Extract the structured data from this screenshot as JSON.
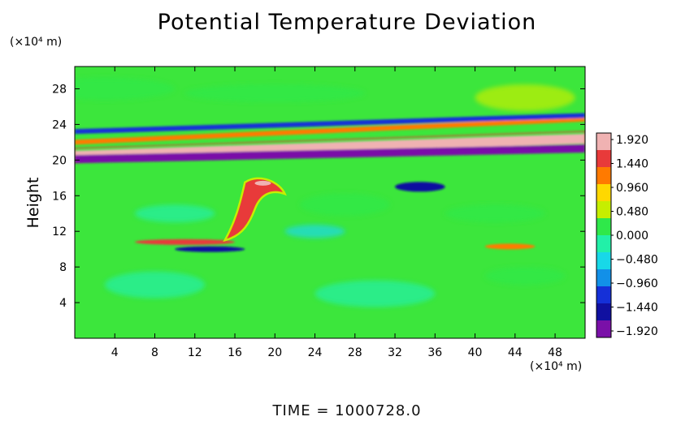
{
  "chart_data": {
    "type": "heatmap",
    "title": "Potential Temperature Deviation",
    "ylabel": "Height",
    "x_unit": "(×10⁴ m)",
    "y_unit": "(×10⁴ m)",
    "x_ticks": [
      4,
      8,
      12,
      16,
      20,
      24,
      28,
      32,
      36,
      40,
      44,
      48
    ],
    "y_ticks": [
      4,
      8,
      12,
      16,
      20,
      24,
      28
    ],
    "xlim": [
      0,
      51
    ],
    "ylim": [
      0,
      30.5
    ],
    "colorbar": {
      "labels": [
        "1.920",
        "1.440",
        "0.960",
        "0.480",
        "0.000",
        "−0.480",
        "−0.960",
        "−1.440",
        "−1.920"
      ],
      "colors": [
        "#f0b2b2",
        "#e83a3a",
        "#ff7a00",
        "#ffd800",
        "#c6ee00",
        "#2fe84a",
        "#22f0a8",
        "#18d8e8",
        "#1290e8",
        "#1530d8",
        "#1010a0",
        "#7a10a8"
      ]
    },
    "background_color": "#3ce63c",
    "features": [
      {
        "name": "upper-positive-band",
        "x": [
          0,
          51
        ],
        "y_left": 20.5,
        "y_right": 22.4,
        "value": 1.92
      },
      {
        "name": "upper-negative-band",
        "x": [
          0,
          51
        ],
        "y_left": 20.1,
        "y_right": 21.3,
        "value": -1.92
      },
      {
        "name": "stratosphere-wave-positive",
        "x": [
          0,
          51
        ],
        "y_left": 22.0,
        "y_right": 24.6,
        "value": 1.2
      },
      {
        "name": "stratosphere-wave-negative",
        "x": [
          0,
          51
        ],
        "y_left": 23.2,
        "y_right": 25.0,
        "value": -1.3
      },
      {
        "name": "tropopause-warm-streak",
        "x": [
          6,
          16
        ],
        "y": 10.8,
        "value": 1.5
      },
      {
        "name": "tropopause-cold-streak",
        "x": [
          10,
          17
        ],
        "y": 10.0,
        "value": -1.6
      },
      {
        "name": "convective-plume",
        "x": [
          14,
          21
        ],
        "y": [
          10,
          18.5
        ],
        "value": 1.6
      },
      {
        "name": "cold-anomaly-36",
        "x": [
          32,
          37
        ],
        "y": 17.0,
        "value": -1.6
      },
      {
        "name": "warm-streak-44",
        "x": [
          41,
          46
        ],
        "y": 10.3,
        "value": 1.3
      }
    ]
  },
  "time_label": "TIME = 1000728.0"
}
